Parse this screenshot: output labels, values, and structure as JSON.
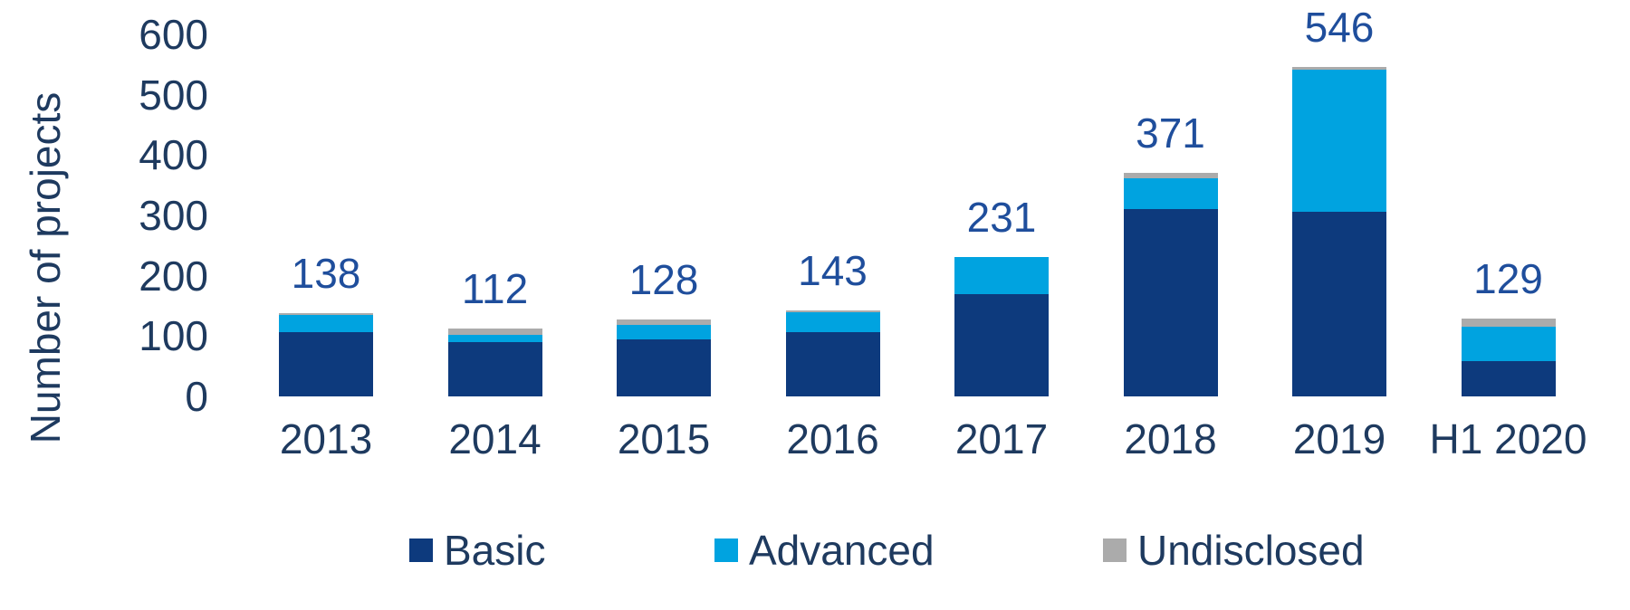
{
  "chart_data": {
    "type": "bar",
    "stacked": true,
    "title": "",
    "xlabel": "",
    "ylabel": "Number of projects",
    "ylim": [
      0,
      600
    ],
    "yticks": [
      0,
      100,
      200,
      300,
      400,
      500,
      600
    ],
    "grid": false,
    "legend_position": "bottom",
    "categories": [
      "2013",
      "2014",
      "2015",
      "2016",
      "2017",
      "2018",
      "2019",
      "H1 2020"
    ],
    "series": [
      {
        "name": "Basic",
        "color": "#0d3a7d",
        "values": [
          106,
          90,
          95,
          107,
          170,
          310,
          306,
          58
        ]
      },
      {
        "name": "Advanced",
        "color": "#00a3e0",
        "values": [
          29,
          12,
          23,
          33,
          61,
          52,
          236,
          57
        ]
      },
      {
        "name": "Undisclosed",
        "color": "#ababab",
        "values": [
          3,
          10,
          10,
          3,
          0,
          9,
          4,
          14
        ]
      }
    ],
    "totals": [
      138,
      112,
      128,
      143,
      231,
      371,
      546,
      129
    ],
    "data_labels": "totals",
    "colors": {
      "axis_text": "#1e3a5f",
      "total_label_text": "#1f4e9c",
      "background": "#ffffff"
    }
  }
}
